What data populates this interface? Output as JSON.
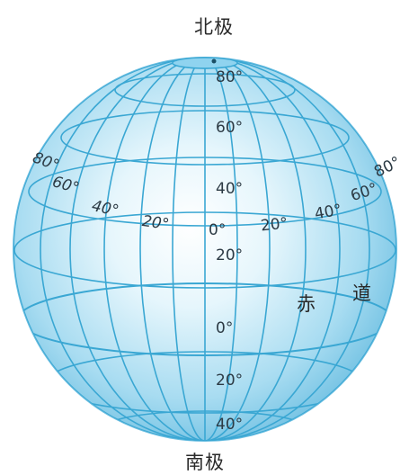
{
  "poles": {
    "north": "北极",
    "south": "南极"
  },
  "equator": {
    "char1": "赤",
    "char2": "道"
  },
  "longitude_labels": {
    "west": [
      "80°",
      "60°",
      "40°",
      "20°"
    ],
    "center": "0°",
    "east": [
      "20°",
      "40°",
      "60°",
      "80°"
    ]
  },
  "latitude_labels": {
    "north": [
      "80°",
      "60°",
      "40°",
      "20°"
    ],
    "equator": "0°",
    "south": [
      "20°",
      "40°"
    ]
  },
  "colors": {
    "globe_fill": "#bfe6f5",
    "globe_edge": "#7cc6e4",
    "grid_line": "#3aa7d3",
    "label_text": "#2c3a44"
  }
}
